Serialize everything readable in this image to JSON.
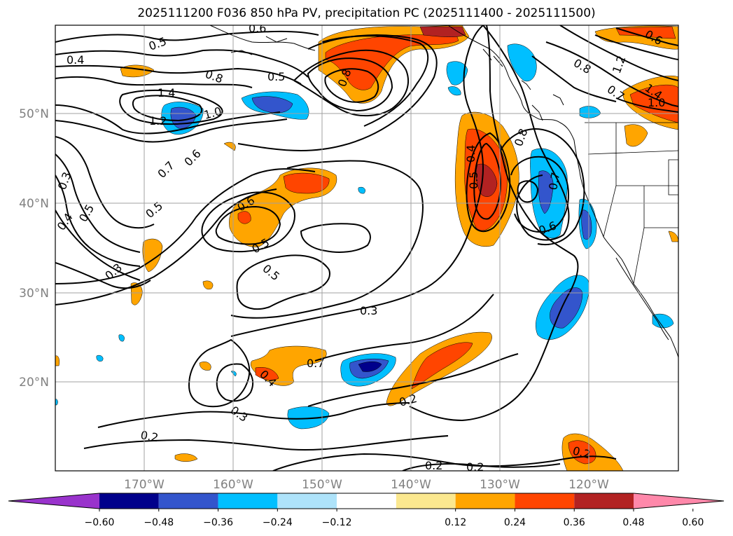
{
  "title": "2025111200 F036 850 hPa PV, precipitation PC (2025111400 - 2025111500)",
  "map": {
    "lat_ticks": [
      "50°N",
      "40°N",
      "30°N",
      "20°N"
    ],
    "lon_ticks": [
      "170°W",
      "160°W",
      "150°W",
      "140°W",
      "130°W",
      "120°W"
    ],
    "contour_labels": [
      "0.4",
      "0.5",
      "0.6",
      "0.8",
      "0.5",
      "1.4",
      "1.2",
      "1.0",
      "0.8",
      "0.3",
      "0.4",
      "0.5",
      "0.7",
      "0.6",
      "0.5",
      "0.3",
      "0.6",
      "0.5",
      "0.5",
      "0.3",
      "0.4",
      "0.5",
      "0.8",
      "0.7",
      "0.6",
      "0.8",
      "0.7",
      "1.2",
      "1.4",
      "1.0",
      "0.6",
      "0.7",
      "0.2",
      "0.4",
      "0.3",
      "0.2",
      "0.2",
      "0.2",
      "0.2"
    ]
  },
  "colorbar": {
    "colors": [
      "#9933cc",
      "#00008b",
      "#3355cc",
      "#00bfff",
      "#aee3fa",
      "#ffffff",
      "#fbe88f",
      "#ffa500",
      "#ff4500",
      "#b22222",
      "#ff88aa"
    ],
    "tick_labels": [
      "−0.60",
      "−0.48",
      "−0.36",
      "−0.24",
      "−0.12",
      "0.12",
      "0.24",
      "0.36",
      "0.48",
      "0.60"
    ]
  },
  "colors": {
    "orange": "#ffa500",
    "red_orange": "#ff4500",
    "dark_red": "#b22222",
    "blue_light": "#00bfff",
    "blue_mid": "#3355cc",
    "blue_dark": "#00008b"
  }
}
